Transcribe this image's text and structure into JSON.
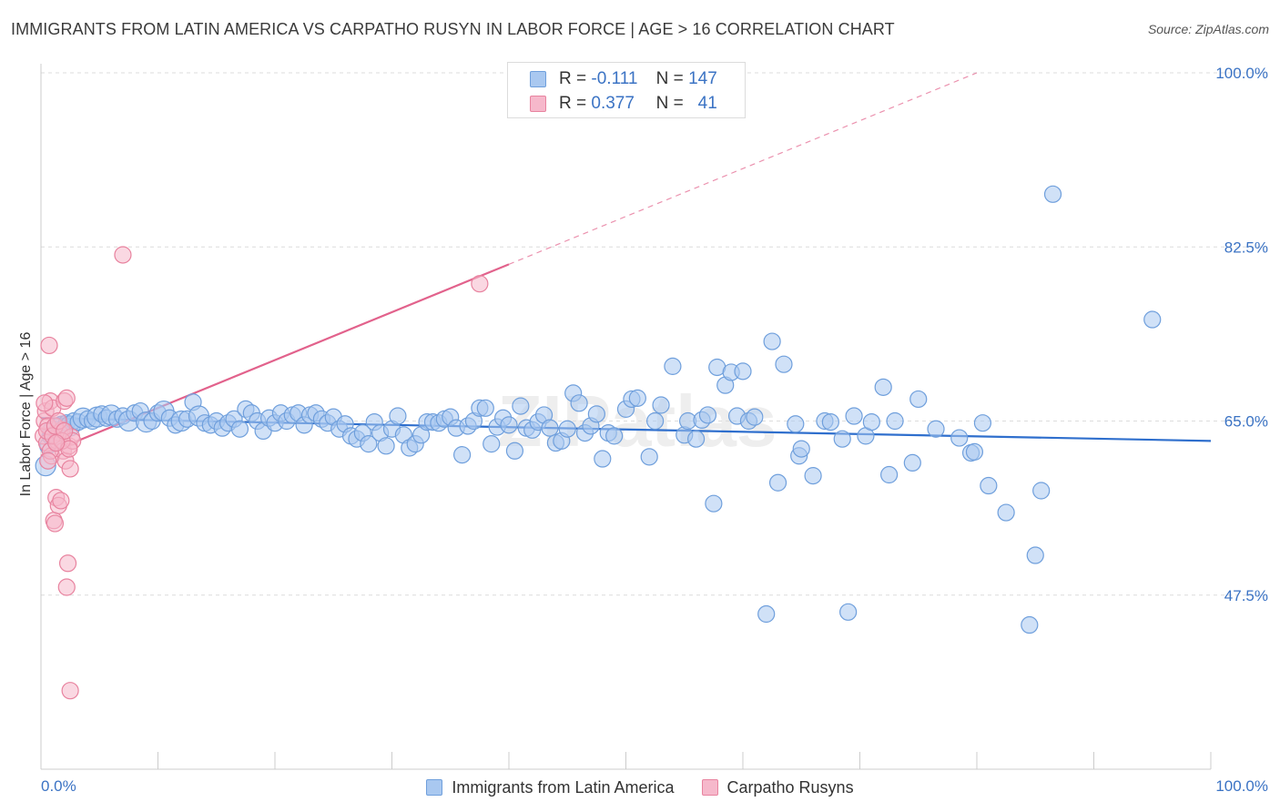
{
  "title": "IMMIGRANTS FROM LATIN AMERICA VS CARPATHO RUSYN IN LABOR FORCE | AGE > 16 CORRELATION CHART",
  "source": "Source: ZipAtlas.com",
  "watermark": "ZIPatlas",
  "colors": {
    "blue_fill": "#a9c8f0",
    "blue_stroke": "#6f9fdc",
    "blue_line": "#2f6fcd",
    "pink_fill": "#f6b8cb",
    "pink_stroke": "#e8839f",
    "pink_line": "#e2628c",
    "tick_text": "#3b73c4"
  },
  "legend": {
    "r_label": "R =",
    "n_label": "N =",
    "rows": [
      {
        "r": "-0.111",
        "n": "147"
      },
      {
        "r": "0.377",
        "n": "41"
      }
    ]
  },
  "chart_data": {
    "type": "scatter",
    "ylabel": "In Labor Force | Age > 16",
    "xlim": [
      0,
      100
    ],
    "ylim": [
      30,
      100
    ],
    "x_tick_labels": [
      "0.0%",
      "100.0%"
    ],
    "y_ticks": [
      47.5,
      65.0,
      82.5,
      100.0
    ],
    "y_tick_labels": [
      "47.5%",
      "65.0%",
      "82.5%",
      "100.0%"
    ],
    "grid": true,
    "legend_position": "top-center",
    "series": [
      {
        "name": "Immigrants from Latin America",
        "color": "blue",
        "trend": {
          "x0": 0,
          "y0": 65.3,
          "x1": 100,
          "y1": 63.0,
          "solid_to": 100
        },
        "points": [
          [
            0.4,
            60.5
          ],
          [
            0.6,
            62.5
          ],
          [
            0.8,
            63.5
          ],
          [
            1.0,
            64.0
          ],
          [
            1.2,
            63.0
          ],
          [
            1.5,
            63.8
          ],
          [
            1.8,
            64.5
          ],
          [
            2.0,
            64.2
          ],
          [
            2.2,
            64.8
          ],
          [
            2.5,
            64.5
          ],
          [
            2.8,
            65.0
          ],
          [
            3.2,
            64.9
          ],
          [
            3.6,
            65.3
          ],
          [
            4.0,
            65.2
          ],
          [
            4.4,
            65.0
          ],
          [
            4.8,
            65.4
          ],
          [
            5.2,
            65.7
          ],
          [
            5.6,
            65.3
          ],
          [
            6.0,
            65.6
          ],
          [
            6.5,
            65.2
          ],
          [
            7.0,
            65.5
          ],
          [
            7.5,
            65.0
          ],
          [
            8.0,
            65.8
          ],
          [
            8.5,
            66.0
          ],
          [
            9.0,
            64.9
          ],
          [
            9.5,
            65.0
          ],
          [
            10.0,
            65.8
          ],
          [
            10.5,
            66.0
          ],
          [
            11.0,
            65.3
          ],
          [
            11.5,
            64.6
          ],
          [
            12.0,
            65.0
          ],
          [
            12.5,
            65.2
          ],
          [
            13.0,
            66.9
          ],
          [
            13.5,
            65.5
          ],
          [
            14.0,
            64.8
          ],
          [
            14.5,
            64.6
          ],
          [
            15.0,
            65.0
          ],
          [
            15.5,
            64.3
          ],
          [
            16.0,
            64.8
          ],
          [
            16.5,
            65.2
          ],
          [
            17.0,
            64.2
          ],
          [
            17.5,
            66.2
          ],
          [
            18.0,
            65.8
          ],
          [
            18.5,
            65.0
          ],
          [
            19.0,
            64.0
          ],
          [
            19.5,
            65.3
          ],
          [
            20.0,
            64.8
          ],
          [
            20.5,
            65.8
          ],
          [
            21.0,
            65.0
          ],
          [
            21.5,
            65.6
          ],
          [
            22.0,
            65.8
          ],
          [
            22.5,
            64.6
          ],
          [
            23.0,
            65.6
          ],
          [
            23.5,
            65.8
          ],
          [
            24.0,
            65.2
          ],
          [
            24.5,
            64.8
          ],
          [
            25.0,
            65.4
          ],
          [
            25.5,
            64.2
          ],
          [
            26.0,
            64.7
          ],
          [
            26.5,
            63.5
          ],
          [
            27.0,
            63.2
          ],
          [
            27.5,
            63.8
          ],
          [
            28.0,
            62.7
          ],
          [
            28.5,
            64.9
          ],
          [
            29.0,
            63.8
          ],
          [
            29.5,
            62.5
          ],
          [
            30.0,
            64.2
          ],
          [
            30.5,
            65.5
          ],
          [
            31.0,
            63.6
          ],
          [
            31.5,
            62.3
          ],
          [
            32.0,
            62.7
          ],
          [
            32.5,
            63.6
          ],
          [
            33.0,
            64.9
          ],
          [
            33.5,
            64.9
          ],
          [
            34.0,
            64.8
          ],
          [
            34.5,
            65.2
          ],
          [
            35.0,
            65.4
          ],
          [
            35.5,
            64.3
          ],
          [
            36.0,
            61.6
          ],
          [
            36.5,
            64.5
          ],
          [
            37.0,
            65.0
          ],
          [
            37.5,
            66.3
          ],
          [
            38.0,
            66.3
          ],
          [
            38.5,
            62.7
          ],
          [
            39.0,
            64.4
          ],
          [
            39.5,
            65.3
          ],
          [
            40.0,
            64.6
          ],
          [
            40.5,
            62.0
          ],
          [
            41.0,
            66.5
          ],
          [
            41.5,
            64.3
          ],
          [
            42.0,
            64.1
          ],
          [
            42.5,
            64.9
          ],
          [
            43.0,
            65.6
          ],
          [
            43.5,
            64.3
          ],
          [
            44.0,
            62.8
          ],
          [
            44.5,
            63.0
          ],
          [
            45.0,
            64.2
          ],
          [
            45.5,
            67.8
          ],
          [
            46.0,
            66.8
          ],
          [
            46.5,
            63.8
          ],
          [
            47.0,
            64.5
          ],
          [
            47.5,
            65.7
          ],
          [
            48.0,
            61.2
          ],
          [
            48.5,
            63.8
          ],
          [
            49.0,
            63.5
          ],
          [
            50.0,
            66.2
          ],
          [
            50.5,
            67.2
          ],
          [
            51.0,
            67.3
          ],
          [
            52.0,
            61.4
          ],
          [
            52.5,
            65.0
          ],
          [
            53.0,
            66.6
          ],
          [
            54.0,
            70.5
          ],
          [
            55.0,
            63.6
          ],
          [
            55.3,
            65.0
          ],
          [
            56.0,
            63.2
          ],
          [
            56.5,
            65.1
          ],
          [
            57.0,
            65.6
          ],
          [
            57.5,
            56.7
          ],
          [
            57.8,
            70.4
          ],
          [
            58.5,
            68.6
          ],
          [
            59.0,
            69.9
          ],
          [
            59.5,
            65.5
          ],
          [
            60.0,
            70.0
          ],
          [
            60.5,
            65.0
          ],
          [
            61.0,
            65.4
          ],
          [
            62.0,
            45.6
          ],
          [
            62.5,
            73.0
          ],
          [
            63.0,
            58.8
          ],
          [
            63.5,
            70.7
          ],
          [
            64.5,
            64.7
          ],
          [
            64.8,
            61.5
          ],
          [
            65.0,
            62.2
          ],
          [
            66.0,
            59.5
          ],
          [
            67.0,
            65.0
          ],
          [
            67.5,
            64.9
          ],
          [
            68.5,
            63.2
          ],
          [
            69.0,
            45.8
          ],
          [
            69.5,
            65.5
          ],
          [
            70.5,
            63.5
          ],
          [
            71.0,
            64.9
          ],
          [
            72.0,
            68.4
          ],
          [
            72.5,
            59.6
          ],
          [
            73.0,
            65.0
          ],
          [
            74.5,
            60.8
          ],
          [
            75.0,
            67.2
          ],
          [
            76.5,
            64.2
          ],
          [
            78.5,
            63.3
          ],
          [
            79.5,
            61.8
          ],
          [
            79.8,
            61.9
          ],
          [
            80.5,
            64.8
          ],
          [
            81.0,
            58.5
          ],
          [
            82.5,
            55.8
          ],
          [
            85.0,
            51.5
          ],
          [
            85.5,
            58.0
          ],
          [
            84.5,
            44.5
          ],
          [
            86.5,
            87.8
          ],
          [
            95.0,
            75.2
          ]
        ]
      },
      {
        "name": "Carpatho Rusyns",
        "color": "pink",
        "trend": {
          "x0": 0,
          "y0": 61.5,
          "x1": 80,
          "y1": 100.0,
          "solid_to": 40
        },
        "points": [
          [
            0.2,
            63.5
          ],
          [
            0.3,
            65.0
          ],
          [
            0.4,
            66.0
          ],
          [
            0.5,
            62.8
          ],
          [
            0.6,
            64.5
          ],
          [
            0.7,
            72.6
          ],
          [
            0.8,
            67.0
          ],
          [
            0.9,
            61.5
          ],
          [
            1.0,
            66.3
          ],
          [
            1.1,
            55.0
          ],
          [
            1.2,
            54.7
          ],
          [
            1.3,
            57.3
          ],
          [
            1.4,
            63.0
          ],
          [
            1.5,
            56.5
          ],
          [
            1.6,
            63.8
          ],
          [
            1.7,
            57.0
          ],
          [
            1.8,
            64.1
          ],
          [
            1.9,
            62.0
          ],
          [
            2.0,
            67.0
          ],
          [
            2.1,
            61.0
          ],
          [
            2.2,
            67.3
          ],
          [
            2.3,
            50.7
          ],
          [
            2.4,
            62.5
          ],
          [
            2.5,
            60.2
          ],
          [
            2.6,
            63.4
          ],
          [
            2.7,
            63.0
          ],
          [
            0.5,
            64.0
          ],
          [
            0.8,
            62.0
          ],
          [
            1.0,
            63.5
          ],
          [
            1.2,
            64.5
          ],
          [
            1.5,
            65.0
          ],
          [
            1.8,
            63.0
          ],
          [
            2.0,
            64.0
          ],
          [
            0.3,
            66.8
          ],
          [
            0.6,
            61.0
          ],
          [
            2.2,
            48.3
          ],
          [
            2.4,
            62.2
          ],
          [
            2.5,
            37.9
          ],
          [
            7.0,
            81.7
          ],
          [
            37.5,
            78.8
          ],
          [
            1.3,
            62.8
          ]
        ]
      }
    ]
  }
}
